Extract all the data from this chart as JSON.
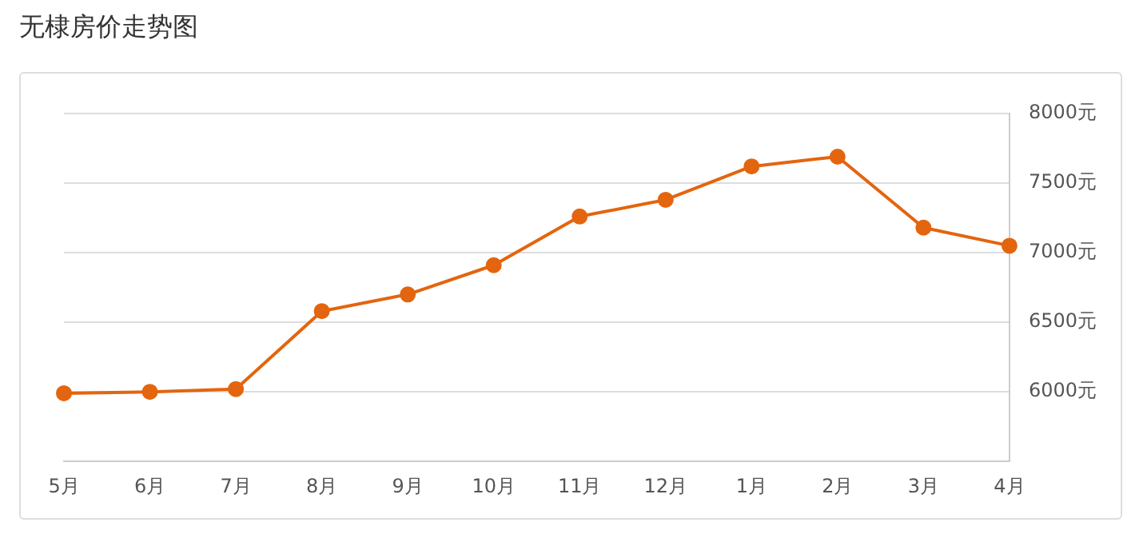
{
  "chart_data": {
    "type": "line",
    "title": "无棣房价走势图",
    "categories": [
      "5月",
      "6月",
      "7月",
      "8月",
      "9月",
      "10月",
      "11月",
      "12月",
      "1月",
      "2月",
      "3月",
      "4月"
    ],
    "series": [
      {
        "color": "#e3650f",
        "values": [
          5990,
          6000,
          6020,
          6580,
          6700,
          6910,
          7260,
          7380,
          7620,
          7690,
          7180,
          7050
        ]
      }
    ],
    "ylim": [
      5500,
      8000
    ],
    "yticks": [
      {
        "value": 5500,
        "label": null
      },
      {
        "value": 6000,
        "label": "6000元"
      },
      {
        "value": 6500,
        "label": "6500元"
      },
      {
        "value": 7000,
        "label": "7000元"
      },
      {
        "value": 7500,
        "label": "7500元"
      },
      {
        "value": 8000,
        "label": "8000元"
      }
    ],
    "grid": "y",
    "legend": false,
    "marker": "circle",
    "line_style": "solid"
  }
}
